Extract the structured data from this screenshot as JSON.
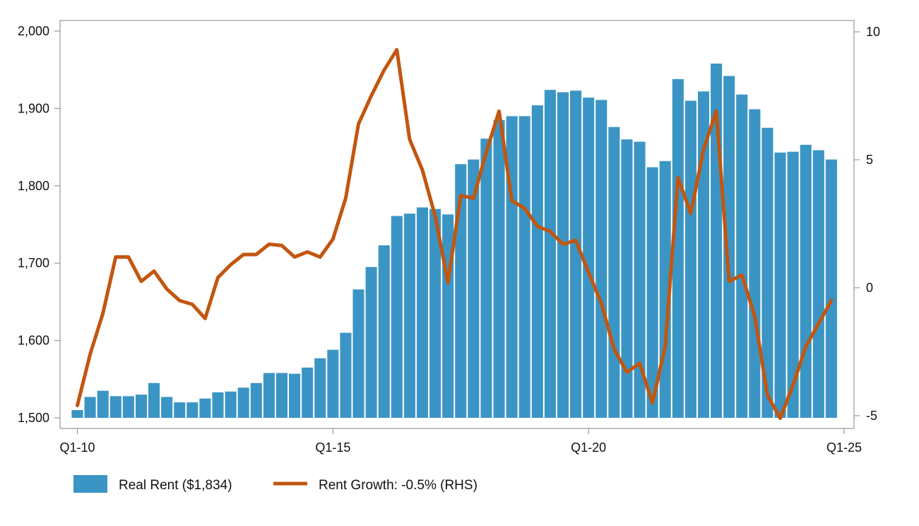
{
  "chart_data": {
    "type": "bar",
    "title": "",
    "xlabel": "",
    "ylabel": "",
    "ylim": [
      1500,
      2000
    ],
    "ylim_right": [
      -5,
      10
    ],
    "grid": false,
    "legend_position": "bottom-left",
    "colors": {
      "bars": "#3b95c4",
      "line": "#c2560f",
      "frame": "#9a9a9a",
      "text": "#111111"
    },
    "x_ticks": [
      "Q1-10",
      "Q1-15",
      "Q1-20",
      "Q1-25"
    ],
    "y_ticks_left": [
      "1,500",
      "1,600",
      "1,700",
      "1,800",
      "1,900",
      "2,000"
    ],
    "y_ticks_right": [
      "-5",
      "0",
      "5",
      "10"
    ],
    "legend": {
      "bars_label": "Real Rent ($1,834)",
      "line_label": "Rent Growth: -0.5% (RHS)"
    },
    "series": [
      {
        "name": "Real Rent ($1,834)",
        "type": "bar",
        "axis": "left",
        "values": [
          1510,
          1527,
          1535,
          1528,
          1528,
          1530,
          1545,
          1527,
          1520,
          1520,
          1525,
          1533,
          1534,
          1539,
          1545,
          1558,
          1558,
          1557,
          1565,
          1577,
          1588,
          1610,
          1666,
          1695,
          1723,
          1761,
          1764,
          1772,
          1770,
          1763,
          1828,
          1834,
          1861,
          1885,
          1890,
          1890,
          1904,
          1924,
          1921,
          1923,
          1914,
          1911,
          1876,
          1860,
          1857,
          1824,
          1832,
          1938,
          1910,
          1922,
          1958,
          1942,
          1918,
          1899,
          1875,
          1843,
          1844,
          1853,
          1846,
          1834
        ]
      },
      {
        "name": "Rent Growth: -0.5% (RHS)",
        "type": "line",
        "axis": "right",
        "values": [
          -4.6,
          -2.6,
          -1.0,
          1.2,
          1.2,
          0.25,
          0.65,
          -0.05,
          -0.5,
          -0.65,
          -1.2,
          0.4,
          0.9,
          1.3,
          1.3,
          1.7,
          1.65,
          1.2,
          1.4,
          1.2,
          1.9,
          3.5,
          6.4,
          7.5,
          8.5,
          9.3,
          5.8,
          4.6,
          2.8,
          0.2,
          3.6,
          3.5,
          5.3,
          6.9,
          3.4,
          3.1,
          2.4,
          2.2,
          1.7,
          1.85,
          0.6,
          -0.6,
          -2.4,
          -3.3,
          -2.95,
          -4.5,
          -2.3,
          4.3,
          2.9,
          5.4,
          6.9,
          0.25,
          0.5,
          -1.1,
          -4.2,
          -5.1,
          -3.8,
          -2.3,
          -1.4,
          -0.5
        ]
      }
    ]
  }
}
